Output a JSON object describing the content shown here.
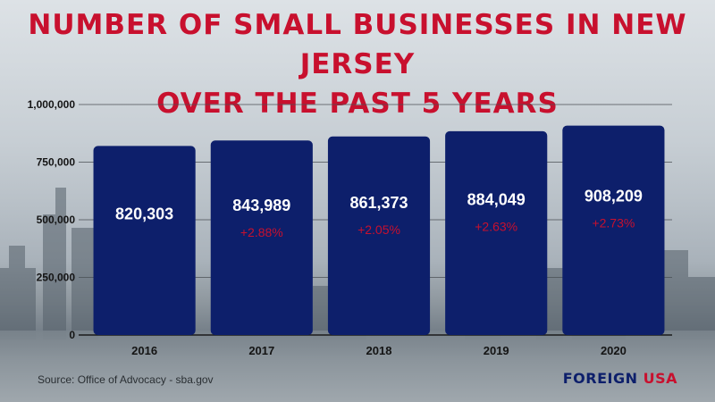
{
  "title": [
    "NUMBER OF SMALL BUSINESSES IN NEW JERSEY",
    "OVER THE PAST 5 YEARS"
  ],
  "source": "Source: Office of Advocacy - sba.gov",
  "brand": {
    "part1": "FOREIGN",
    "part2": "USA"
  },
  "colors": {
    "bar": "#0d1f6b",
    "title": "#c8102e",
    "change": "#c8102e",
    "value": "#ffffff"
  },
  "chart_data": {
    "type": "bar",
    "title": "NUMBER OF SMALL BUSINESSES IN NEW JERSEY OVER THE PAST 5 YEARS",
    "categories": [
      "2016",
      "2017",
      "2018",
      "2019",
      "2020"
    ],
    "values": [
      820303,
      843989,
      861373,
      884049,
      908209
    ],
    "value_labels": [
      "820,303",
      "843,989",
      "861,373",
      "884,049",
      "908,209"
    ],
    "change_labels": [
      "",
      "+2.88%",
      "+2.05%",
      "+2.63%",
      "+2.73%"
    ],
    "ylim": [
      0,
      1000000
    ],
    "yticks": [
      0,
      250000,
      500000,
      750000,
      1000000
    ],
    "ytick_labels": [
      "0",
      "250,000",
      "500,000",
      "750,000",
      "1,000,000"
    ],
    "grid": true,
    "xlabel": "",
    "ylabel": ""
  }
}
